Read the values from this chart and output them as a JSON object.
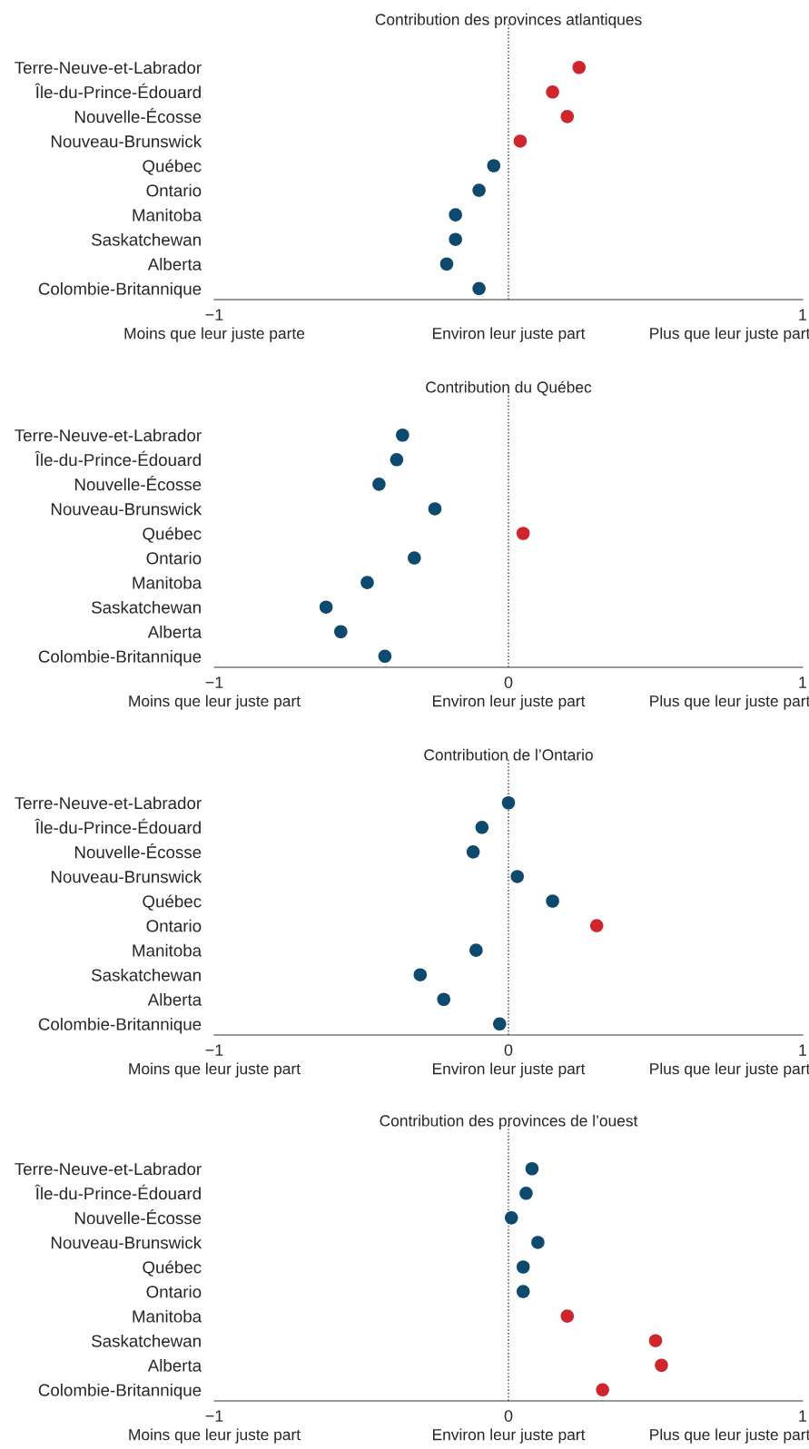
{
  "chart_data": [
    {
      "type": "scatter",
      "title": "Contribution des provinces atlantiques",
      "orientation": "horizontal",
      "categories": [
        "Terre-Neuve-et-Labrador",
        "Île-du-Prince-Édouard",
        "Nouvelle-Écosse",
        "Nouveau-Brunswick",
        "Québec",
        "Ontario",
        "Manitoba",
        "Saskatchewan",
        "Alberta",
        "Colombie-Britannique"
      ],
      "values": [
        0.24,
        0.15,
        0.2,
        0.04,
        -0.05,
        -0.1,
        -0.18,
        -0.18,
        -0.21,
        -0.1
      ],
      "colors": [
        "#d0252d",
        "#d0252d",
        "#d0252d",
        "#d0252d",
        "#0e4a6e",
        "#0e4a6e",
        "#0e4a6e",
        "#0e4a6e",
        "#0e4a6e",
        "#0e4a6e"
      ],
      "xlim": [
        -1,
        1
      ],
      "xticks": [
        -1,
        {
          "value": 0,
          "label": null
        },
        1
      ],
      "ref_lines": [
        {
          "axis": "x",
          "value": 0,
          "line_style": "dotted",
          "color": "#333333"
        }
      ],
      "annotations": [
        "Moins que leur juste parte",
        "Environ leur juste part",
        "Plus que leur juste part"
      ],
      "marker": "circle",
      "grid": false,
      "legend": false
    },
    {
      "type": "scatter",
      "title": "Contribution du Québec",
      "orientation": "horizontal",
      "categories": [
        "Terre-Neuve-et-Labrador",
        "Île-du-Prince-Édouard",
        "Nouvelle-Écosse",
        "Nouveau-Brunswick",
        "Québec",
        "Ontario",
        "Manitoba",
        "Saskatchewan",
        "Alberta",
        "Colombie-Britannique"
      ],
      "values": [
        -0.36,
        -0.38,
        -0.44,
        -0.25,
        0.05,
        -0.32,
        -0.48,
        -0.62,
        -0.57,
        -0.42
      ],
      "colors": [
        "#0e4a6e",
        "#0e4a6e",
        "#0e4a6e",
        "#0e4a6e",
        "#d0252d",
        "#0e4a6e",
        "#0e4a6e",
        "#0e4a6e",
        "#0e4a6e",
        "#0e4a6e"
      ],
      "xlim": [
        -1,
        1
      ],
      "xticks": [
        -1,
        0,
        1
      ],
      "ref_lines": [
        {
          "axis": "x",
          "value": 0,
          "line_style": "dotted",
          "color": "#333333"
        }
      ],
      "annotations": [
        "Moins que leur juste part",
        "Environ leur juste part",
        "Plus que leur juste part"
      ],
      "marker": "circle",
      "grid": false,
      "legend": false
    },
    {
      "type": "scatter",
      "title": "Contribution de l’Ontario",
      "orientation": "horizontal",
      "categories": [
        "Terre-Neuve-et-Labrador",
        "Île-du-Prince-Édouard",
        "Nouvelle-Écosse",
        "Nouveau-Brunswick",
        "Québec",
        "Ontario",
        "Manitoba",
        "Saskatchewan",
        "Alberta",
        "Colombie-Britannique"
      ],
      "values": [
        0.0,
        -0.09,
        -0.12,
        0.03,
        0.15,
        0.3,
        -0.11,
        -0.3,
        -0.22,
        -0.03
      ],
      "colors": [
        "#0e4a6e",
        "#0e4a6e",
        "#0e4a6e",
        "#0e4a6e",
        "#0e4a6e",
        "#d0252d",
        "#0e4a6e",
        "#0e4a6e",
        "#0e4a6e",
        "#0e4a6e"
      ],
      "xlim": [
        -1,
        1
      ],
      "xticks": [
        -1,
        0,
        1
      ],
      "ref_lines": [
        {
          "axis": "x",
          "value": 0,
          "line_style": "dotted",
          "color": "#333333"
        }
      ],
      "annotations": [
        "Moins que leur juste part",
        "Environ leur juste part",
        "Plus que leur juste part"
      ],
      "marker": "circle",
      "grid": false,
      "legend": false
    },
    {
      "type": "scatter",
      "title": "Contribution des provinces de l’ouest",
      "orientation": "horizontal",
      "categories": [
        "Terre-Neuve-et-Labrador",
        "Île-du-Prince-Édouard",
        "Nouvelle-Écosse",
        "Nouveau-Brunswick",
        "Québec",
        "Ontario",
        "Manitoba",
        "Saskatchewan",
        "Alberta",
        "Colombie-Britannique"
      ],
      "values": [
        0.08,
        0.06,
        0.01,
        0.1,
        0.05,
        0.05,
        0.2,
        0.5,
        0.52,
        0.32
      ],
      "colors": [
        "#0e4a6e",
        "#0e4a6e",
        "#0e4a6e",
        "#0e4a6e",
        "#0e4a6e",
        "#0e4a6e",
        "#d0252d",
        "#d0252d",
        "#d0252d",
        "#d0252d"
      ],
      "xlim": [
        -1,
        1
      ],
      "xticks": [
        -1,
        0,
        1
      ],
      "ref_lines": [
        {
          "axis": "x",
          "value": 0,
          "line_style": "dotted",
          "color": "#333333"
        }
      ],
      "annotations": [
        "Moins que leur juste part",
        "Environ leur juste part",
        "Plus que leur juste part"
      ],
      "marker": "circle",
      "grid": false,
      "legend": false
    }
  ]
}
